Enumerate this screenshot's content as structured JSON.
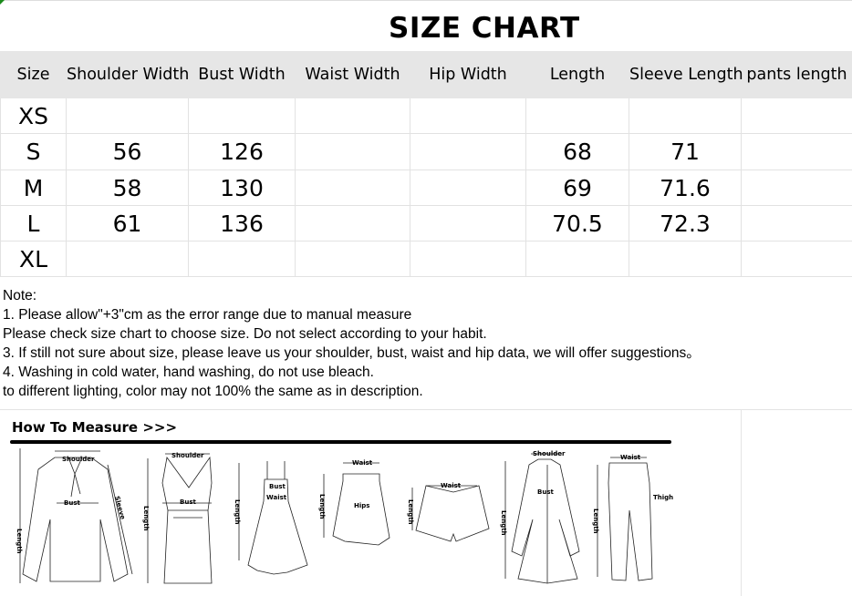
{
  "title": "SIZE CHART",
  "table": {
    "headers": [
      "Size",
      "Shoulder Width",
      "Bust Width",
      "Waist Width",
      "Hip Width",
      "Length",
      "Sleeve Length",
      "pants length"
    ],
    "rows": [
      [
        "XS",
        "",
        "",
        "",
        "",
        "",
        "",
        ""
      ],
      [
        "S",
        "56",
        "126",
        "",
        "",
        "68",
        "71",
        ""
      ],
      [
        "M",
        "58",
        "130",
        "",
        "",
        "69",
        "71.6",
        ""
      ],
      [
        "L",
        "61",
        "136",
        "",
        "",
        "70.5",
        "72.3",
        ""
      ],
      [
        "XL",
        "",
        "",
        "",
        "",
        "",
        "",
        ""
      ]
    ]
  },
  "notes": [
    "Note:",
    "1. Please allow\"+3\"cm as the error range due to manual measure",
    "Please check size chart to choose size. Do not select according to your habit.",
    "3. If still not sure about size, please leave us your shoulder, bust, waist and hip data, we will offer suggestions。",
    "4. Washing in cold water, hand washing, do not use bleach.",
    "to different lighting, color may not 100% the same as in description."
  ],
  "how_to_measure": {
    "heading": "How To Measure >>>",
    "labels": {
      "shoulder": "Shoulder",
      "bust": "Bust",
      "sleeve": "Sleeve",
      "length": "Length",
      "waist": "Waist",
      "hips": "Hips",
      "thigh": "Thigh"
    }
  }
}
